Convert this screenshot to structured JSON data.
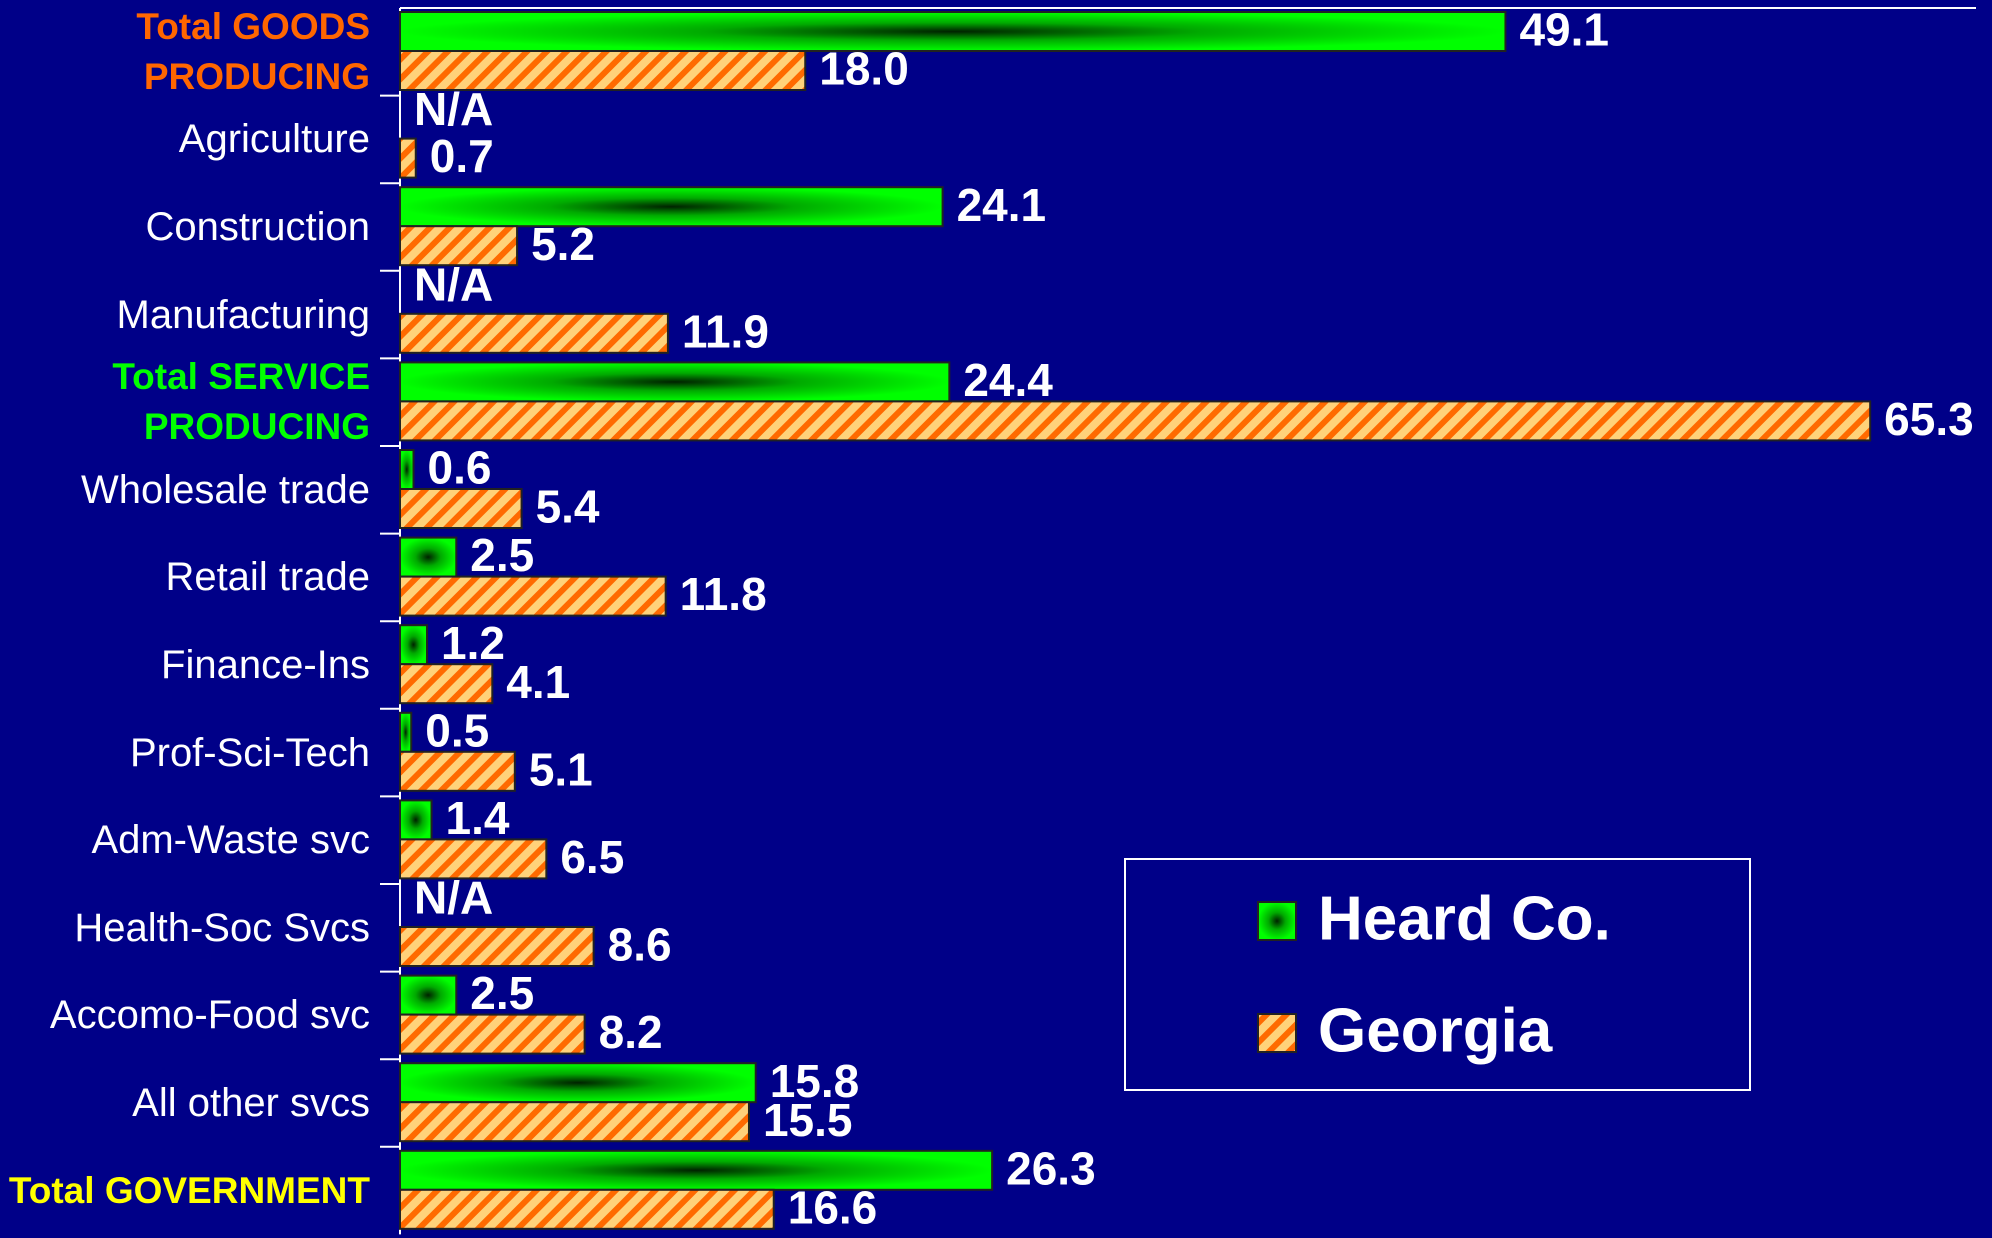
{
  "chart_data": {
    "type": "barh",
    "categories": [
      "Total GOODS PRODUCING",
      "Agriculture",
      "Construction",
      "Manufacturing",
      "Total SERVICE PRODUCING",
      "Wholesale trade",
      "Retail trade",
      "Finance-Ins",
      "Prof-Sci-Tech",
      "Adm-Waste svc",
      "Health-Soc Svcs",
      "Accomo-Food svc",
      "All other svcs",
      "Total GOVERNMENT"
    ],
    "category_colors": [
      "#ff6600",
      "#ffffff",
      "#ffffff",
      "#ffffff",
      "#00ff00",
      "#ffffff",
      "#ffffff",
      "#ffffff",
      "#ffffff",
      "#ffffff",
      "#ffffff",
      "#ffffff",
      "#ffffff",
      "#ffff00"
    ],
    "series": [
      {
        "name": "Heard Co.",
        "color": "#00ee00",
        "values": [
          49.1,
          null,
          24.1,
          null,
          24.4,
          0.6,
          2.5,
          1.2,
          0.5,
          1.4,
          null,
          2.5,
          15.8,
          26.3
        ],
        "value_labels": [
          "49.1",
          "N/A",
          "24.1",
          "N/A",
          "24.4",
          "0.6",
          "2.5",
          "1.2",
          "0.5",
          "1.4",
          "N/A",
          "2.5",
          "15.8",
          "26.3"
        ]
      },
      {
        "name": "Georgia",
        "color": "#ff6600",
        "values": [
          18.0,
          0.7,
          5.2,
          11.9,
          65.3,
          5.4,
          11.8,
          4.1,
          5.1,
          6.5,
          8.6,
          8.2,
          15.5,
          16.6
        ],
        "value_labels": [
          "18.0",
          "0.7",
          "5.2",
          "11.9",
          "65.3",
          "5.4",
          "11.8",
          "4.1",
          "5.1",
          "6.5",
          "8.6",
          "8.2",
          "15.5",
          "16.6"
        ]
      }
    ],
    "xlim": [
      0,
      70
    ],
    "legend": "lower right"
  }
}
